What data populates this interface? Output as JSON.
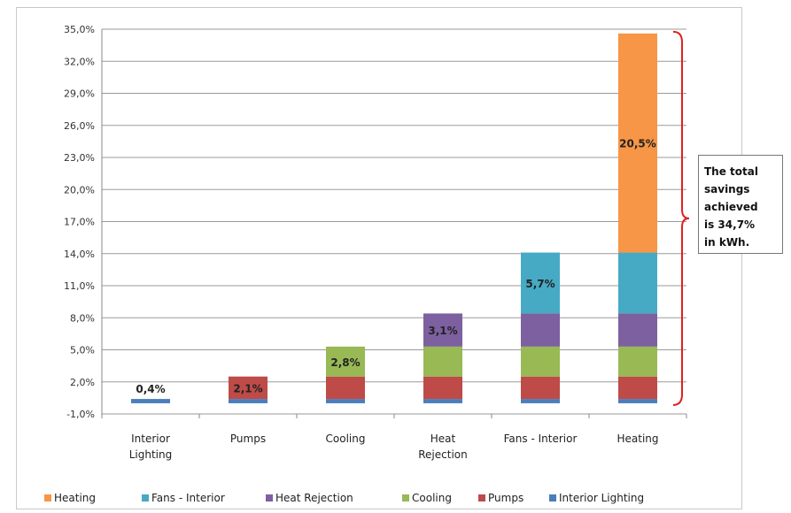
{
  "chart_data": {
    "type": "bar",
    "stacked": true,
    "categories": [
      "Interior Lighting",
      "Pumps",
      "Cooling",
      "Heat Rejection",
      "Fans - Interior",
      "Heating"
    ],
    "category_labels": [
      [
        "Interior",
        "Lighting"
      ],
      [
        "Pumps"
      ],
      [
        "Cooling"
      ],
      [
        "Heat",
        "Rejection"
      ],
      [
        "Fans - Interior"
      ],
      [
        "Heating"
      ]
    ],
    "series": [
      {
        "name": "Interior Lighting",
        "color": "#4a7ebb",
        "values": [
          0.4,
          0.4,
          0.4,
          0.4,
          0.4,
          0.4
        ]
      },
      {
        "name": "Pumps",
        "color": "#be4b48",
        "values": [
          0,
          2.1,
          2.1,
          2.1,
          2.1,
          2.1
        ]
      },
      {
        "name": "Cooling",
        "color": "#98b954",
        "values": [
          0,
          0,
          2.8,
          2.8,
          2.8,
          2.8
        ]
      },
      {
        "name": "Heat Rejection",
        "color": "#7d60a0",
        "values": [
          0,
          0,
          0,
          3.1,
          3.1,
          3.1
        ]
      },
      {
        "name": "Fans - Interior",
        "color": "#46aac5",
        "values": [
          0,
          0,
          0,
          0,
          5.7,
          5.7
        ]
      },
      {
        "name": "Heating",
        "color": "#f79646",
        "values": [
          0,
          0,
          0,
          0,
          0,
          20.5
        ]
      }
    ],
    "data_labels": [
      {
        "category": 0,
        "series": 0,
        "text": "0,4%",
        "position": "above"
      },
      {
        "category": 1,
        "series": 1,
        "text": "2,1%",
        "position": "inside"
      },
      {
        "category": 2,
        "series": 2,
        "text": "2,8%",
        "position": "inside"
      },
      {
        "category": 3,
        "series": 3,
        "text": "3,1%",
        "position": "inside"
      },
      {
        "category": 4,
        "series": 4,
        "text": "5,7%",
        "position": "inside"
      },
      {
        "category": 5,
        "series": 5,
        "text": "20,5%",
        "position": "inside"
      }
    ],
    "yticks": [
      "-1,0%",
      "2,0%",
      "5,0%",
      "8,0%",
      "11,0%",
      "14,0%",
      "17,0%",
      "20,0%",
      "23,0%",
      "26,0%",
      "29,0%",
      "32,0%",
      "35,0%"
    ],
    "ylim": [
      -1,
      35
    ],
    "ytick_step": 3,
    "grid": true,
    "legend": {
      "placement": "bottom",
      "order": [
        "Heating",
        "Fans - Interior",
        "Heat Rejection",
        "Cooling",
        "Pumps",
        "Interior Lighting"
      ]
    },
    "title": "",
    "xlabel": "",
    "ylabel": "",
    "annotation": {
      "lines": [
        "The total",
        "savings",
        "achieved",
        "is 34,7%",
        "in kWh."
      ],
      "bracket_color": "#e02020"
    }
  }
}
